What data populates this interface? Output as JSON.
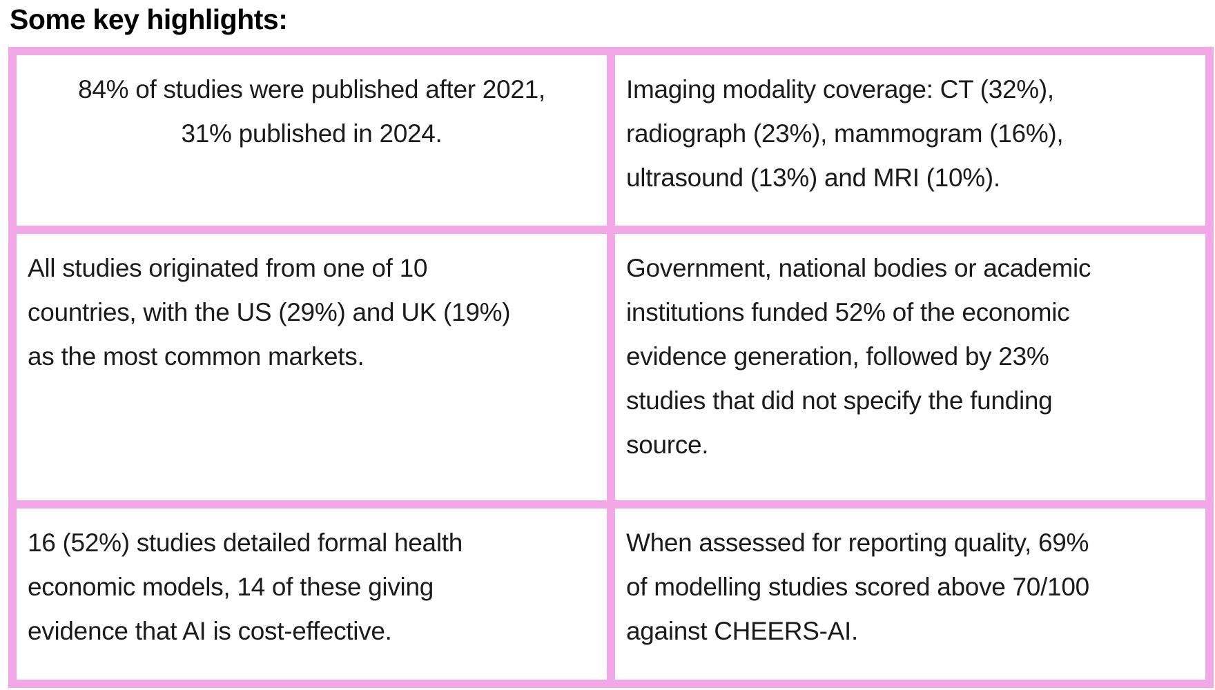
{
  "heading": "Some key highlights:",
  "colors": {
    "table_border": "#f2a8e6",
    "cell_bg": "#ffffff",
    "text": "#1b1b1b"
  },
  "table": {
    "rows": [
      [
        {
          "text": "84% of studies were published after 2021,\n31% published in 2024.",
          "align": "center"
        },
        {
          "text": "Imaging modality coverage: CT (32%),\nradiograph (23%), mammogram (16%),\nultrasound (13%) and MRI (10%).",
          "align": "left"
        }
      ],
      [
        {
          "text": "All studies originated from one of 10\ncountries, with the US (29%) and UK (19%)\nas the most common markets.",
          "align": "left"
        },
        {
          "text": "Government, national bodies or academic\ninstitutions funded 52% of the economic\nevidence generation, followed by 23%\nstudies that did not specify the funding\nsource.",
          "align": "left"
        }
      ],
      [
        {
          "text": "16 (52%) studies detailed formal health\neconomic models, 14 of these giving\nevidence that AI is cost-effective.",
          "align": "left"
        },
        {
          "text": "When assessed for reporting quality, 69%\nof modelling studies scored above 70/100\nagainst CHEERS-AI.",
          "align": "left"
        }
      ]
    ]
  }
}
